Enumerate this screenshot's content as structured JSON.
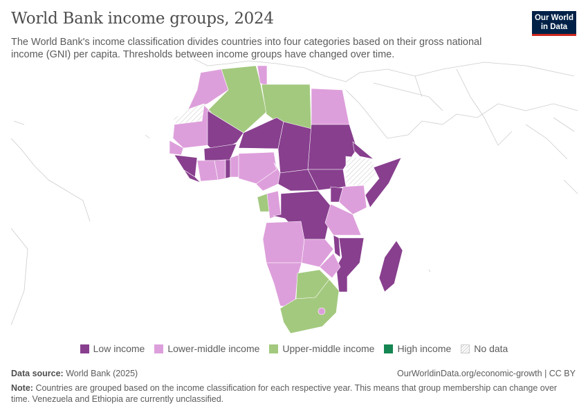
{
  "header": {
    "title": "World Bank income groups, 2024",
    "subtitle": "The World Bank's income classification divides countries into four categories based on their gross national income (GNI) per capita. Thresholds between income groups have changed over time.",
    "logo_text": "Our World in Data"
  },
  "colors": {
    "low": "#883f8e",
    "lower_middle": "#dd9fdb",
    "upper_middle": "#a3c97e",
    "high": "#168652",
    "no_data": "hatched"
  },
  "legend": [
    {
      "key": "low",
      "label": "Low income"
    },
    {
      "key": "lower_middle",
      "label": "Lower-middle income"
    },
    {
      "key": "upper_middle",
      "label": "Upper-middle income"
    },
    {
      "key": "high",
      "label": "High income"
    },
    {
      "key": "no_data",
      "label": "No data"
    }
  ],
  "footer": {
    "source_label": "Data source:",
    "source": "World Bank (2025)",
    "url": "OurWorldinData.org/economic-growth | CC BY",
    "note_label": "Note:",
    "note": "Countries are grouped based on the income classification for each respective year. This means that group membership can change over time. Venezuela and Ethiopia are currently unclassified."
  }
}
